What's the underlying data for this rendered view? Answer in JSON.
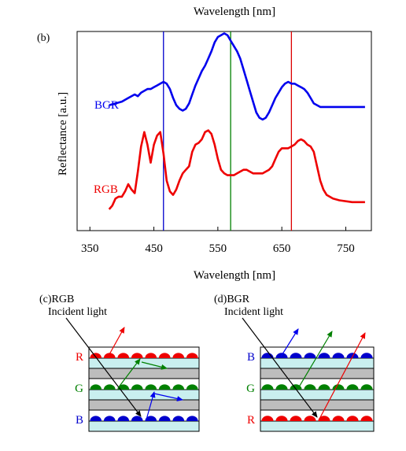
{
  "top_label": "Wavelength [nm]",
  "panel_b": {
    "label": "(b)",
    "chart_data": {
      "type": "line",
      "title": "",
      "xlabel": "Wavelength [nm]",
      "ylabel": "Reflectance [a.u.]",
      "xlim": [
        330,
        790
      ],
      "ylim": [
        0,
        100
      ],
      "xticks": [
        350,
        450,
        550,
        650,
        750
      ],
      "vlines": [
        {
          "x": 465,
          "color": "#0000cc"
        },
        {
          "x": 570,
          "color": "#008000"
        },
        {
          "x": 665,
          "color": "#dd0000"
        }
      ],
      "series": [
        {
          "name": "BGR",
          "color": "#0000ee",
          "x": [
            380,
            390,
            400,
            410,
            415,
            420,
            425,
            430,
            435,
            440,
            445,
            450,
            455,
            460,
            465,
            470,
            475,
            480,
            485,
            490,
            495,
            500,
            505,
            510,
            515,
            520,
            525,
            530,
            535,
            540,
            545,
            550,
            555,
            560,
            565,
            570,
            575,
            580,
            585,
            590,
            595,
            600,
            605,
            610,
            615,
            620,
            625,
            630,
            635,
            640,
            645,
            650,
            655,
            660,
            665,
            670,
            675,
            680,
            685,
            690,
            695,
            700,
            705,
            710,
            720,
            740,
            760,
            780
          ],
          "y": [
            62,
            63,
            64,
            66,
            67,
            68,
            67,
            69,
            70,
            71,
            71,
            72,
            73,
            74,
            75,
            74,
            71,
            66,
            62,
            60,
            59,
            60,
            63,
            68,
            73,
            77,
            81,
            84,
            88,
            92,
            97,
            100,
            101,
            102,
            101,
            98,
            95,
            92,
            88,
            82,
            76,
            70,
            64,
            58,
            55,
            54,
            55,
            58,
            62,
            66,
            69,
            72,
            74,
            75,
            74,
            74,
            73,
            72,
            71,
            69,
            66,
            63,
            62,
            61,
            61,
            61,
            61,
            61
          ]
        },
        {
          "name": "RGB",
          "color": "#ee0000",
          "x": [
            380,
            385,
            390,
            395,
            400,
            405,
            410,
            415,
            420,
            425,
            430,
            435,
            440,
            445,
            450,
            455,
            460,
            465,
            470,
            475,
            480,
            485,
            490,
            495,
            500,
            505,
            510,
            515,
            520,
            525,
            530,
            535,
            540,
            545,
            550,
            555,
            560,
            565,
            570,
            575,
            580,
            585,
            590,
            595,
            600,
            605,
            610,
            615,
            620,
            625,
            630,
            635,
            640,
            645,
            650,
            655,
            660,
            665,
            670,
            675,
            680,
            685,
            690,
            695,
            700,
            705,
            710,
            715,
            720,
            730,
            740,
            760,
            780
          ],
          "y": [
            4,
            6,
            10,
            11,
            11,
            14,
            18,
            15,
            13,
            25,
            39,
            47,
            40,
            30,
            40,
            45,
            47,
            35,
            20,
            14,
            12,
            15,
            20,
            24,
            26,
            28,
            36,
            40,
            41,
            43,
            47,
            48,
            46,
            40,
            32,
            26,
            24,
            23,
            23,
            23,
            24,
            25,
            26,
            26,
            25,
            24,
            24,
            24,
            24,
            25,
            26,
            28,
            32,
            36,
            38,
            38,
            38,
            39,
            40,
            42,
            43,
            42,
            40,
            39,
            36,
            28,
            20,
            15,
            12,
            10,
            9,
            8,
            8
          ]
        }
      ]
    }
  },
  "panel_c": {
    "title": "(c)RGB",
    "incident": "Incident light",
    "layers": [
      {
        "label": "R",
        "color": "#ee0000"
      },
      {
        "label": "G",
        "color": "#008000"
      },
      {
        "label": "B",
        "color": "#0000cc"
      }
    ]
  },
  "panel_d": {
    "title": "(d)BGR",
    "incident": "Incident light",
    "layers": [
      {
        "label": "B",
        "color": "#0000cc"
      },
      {
        "label": "G",
        "color": "#008000"
      },
      {
        "label": "R",
        "color": "#ee0000"
      }
    ]
  },
  "colors": {
    "substrate": "#c9efef",
    "spacer": "#bdbdbd",
    "blue": "#0000ee",
    "green": "#008000",
    "red": "#ee0000"
  }
}
